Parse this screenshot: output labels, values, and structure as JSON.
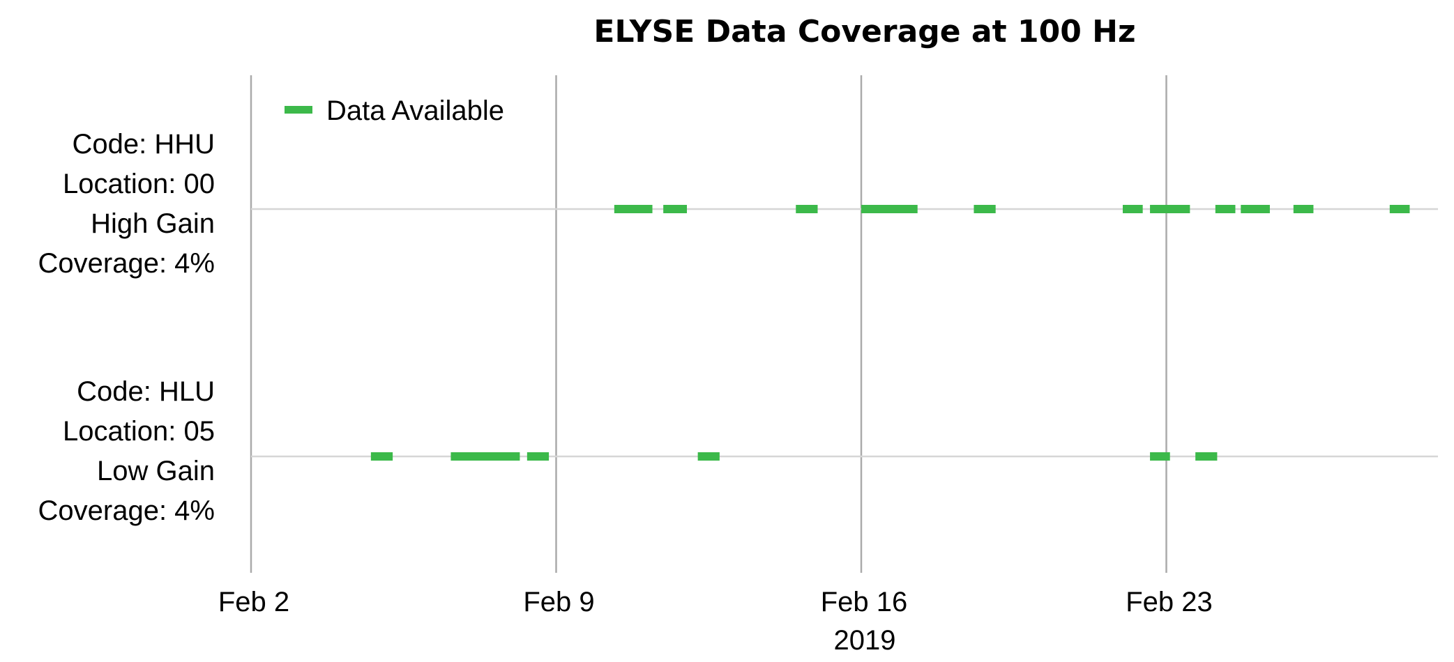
{
  "chart_data": {
    "type": "timeline",
    "title": "ELYSE Data Coverage at 100 Hz",
    "xlabel": "2019",
    "xlim": [
      "2019-02-02",
      "2019-03-02"
    ],
    "x_ticks": [
      "Feb 2",
      "Feb 9",
      "Feb 16",
      "Feb 23"
    ],
    "x_tick_dates": [
      "2019-02-02",
      "2019-02-09",
      "2019-02-16",
      "2019-02-23"
    ],
    "grid": "vertical lines at weekly ticks",
    "legend": {
      "placement": "top-left",
      "entries": [
        "Data Available"
      ]
    },
    "colors": {
      "available": "#3cb94a",
      "grid": "#aaaaaa",
      "row_line": "#d6d6d6"
    },
    "channels": [
      {
        "label_lines": [
          "Code: HHU",
          "Location: 00",
          "High Gain",
          "Coverage: 4%"
        ],
        "intervals": [
          [
            "2019-02-10T08:00",
            "2019-02-11T05:00"
          ],
          [
            "2019-02-11T11:00",
            "2019-02-12T00:00"
          ],
          [
            "2019-02-14T12:00",
            "2019-02-15T00:00"
          ],
          [
            "2019-02-16T00:00",
            "2019-02-17T07:00"
          ],
          [
            "2019-02-18T14:00",
            "2019-02-19T02:00"
          ],
          [
            "2019-02-22T00:00",
            "2019-02-22T11:00"
          ],
          [
            "2019-02-22T15:00",
            "2019-02-23T13:00"
          ],
          [
            "2019-02-24T03:00",
            "2019-02-24T14:00"
          ],
          [
            "2019-02-24T17:00",
            "2019-02-25T09:00"
          ],
          [
            "2019-02-25T22:00",
            "2019-02-26T09:00"
          ],
          [
            "2019-02-28T03:00",
            "2019-02-28T14:00"
          ]
        ]
      },
      {
        "label_lines": [
          "Code: HLU",
          "Location: 05",
          "Low Gain",
          "Coverage: 4%"
        ],
        "intervals": [
          [
            "2019-02-04T18:00",
            "2019-02-05T06:00"
          ],
          [
            "2019-02-06T14:00",
            "2019-02-08T04:00"
          ],
          [
            "2019-02-08T08:00",
            "2019-02-08T20:00"
          ],
          [
            "2019-02-12T06:00",
            "2019-02-12T18:00"
          ],
          [
            "2019-02-22T15:00",
            "2019-02-23T02:00"
          ],
          [
            "2019-02-23T16:00",
            "2019-02-24T04:00"
          ]
        ]
      }
    ]
  }
}
